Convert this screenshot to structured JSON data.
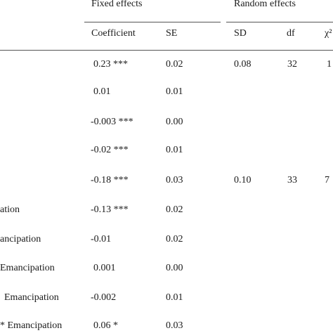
{
  "header": {
    "fixed_effects": "Fixed effects",
    "random_effects": "Random effects"
  },
  "columns": {
    "coefficient": "Coefficient",
    "se": "SE",
    "sd": "SD",
    "df": "df",
    "chi": "χ²"
  },
  "rows": [
    {
      "label": "",
      "coef": "0.23 ***",
      "se": "0.02",
      "sd": "0.08",
      "df": "32",
      "chi": "1"
    },
    {
      "label": "",
      "coef": "0.01",
      "se": "0.01",
      "sd": "",
      "df": "",
      "chi": ""
    },
    {
      "label": "",
      "coef": "-0.003 ***",
      "se": "0.00",
      "sd": "",
      "df": "",
      "chi": ""
    },
    {
      "label": "",
      "coef": "-0.02 ***",
      "se": "0.01",
      "sd": "",
      "df": "",
      "chi": ""
    },
    {
      "label": "",
      "coef": "-0.18 ***",
      "se": "0.03",
      "sd": "0.10",
      "df": "33",
      "chi": "7"
    },
    {
      "label": "ation",
      "coef": "-0.13 ***",
      "se": "0.02",
      "sd": "",
      "df": "",
      "chi": ""
    },
    {
      "label": "ancipation",
      "coef": "-0.01",
      "se": "0.02",
      "sd": "",
      "df": "",
      "chi": ""
    },
    {
      "label": "Emancipation",
      "coef": "0.001",
      "se": "0.00",
      "sd": "",
      "df": "",
      "chi": ""
    },
    {
      "label": "Emancipation",
      "coef": "-0.002",
      "se": "0.01",
      "sd": "",
      "df": "",
      "chi": ""
    },
    {
      "label": "* Emancipation",
      "coef": "0.06 *",
      "se": "0.03",
      "sd": "",
      "df": "",
      "chi": ""
    }
  ]
}
